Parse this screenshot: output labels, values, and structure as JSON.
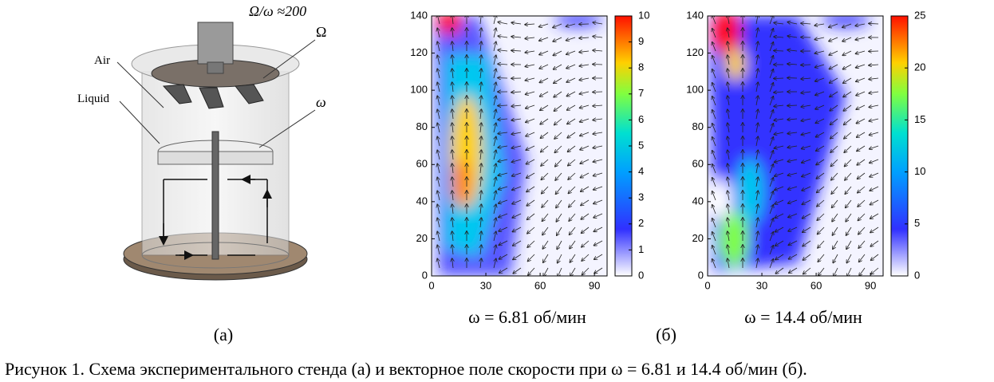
{
  "figure": {
    "diagram": {
      "ratio_label": "Ω/ω  ≈200",
      "omega_big": "Ω",
      "air": "Air",
      "liquid": "Liquid",
      "omega_small": "ω",
      "label": "(a)"
    },
    "panels": [
      {
        "xlim": [
          0,
          97
        ],
        "ylim": [
          0,
          140
        ],
        "xticks": [
          0,
          30,
          60,
          90
        ],
        "yticks": [
          0,
          20,
          40,
          60,
          80,
          100,
          120,
          140
        ],
        "colorbar": {
          "lim": [
            0,
            10
          ],
          "ticks": [
            0,
            1,
            2,
            3,
            4,
            5,
            6,
            7,
            8,
            9,
            10
          ]
        },
        "subtitle": "ω = 6.81 об/мин"
      },
      {
        "xlim": [
          0,
          97
        ],
        "ylim": [
          0,
          140
        ],
        "xticks": [
          0,
          30,
          60,
          90
        ],
        "yticks": [
          0,
          20,
          40,
          60,
          80,
          100,
          120,
          140
        ],
        "colorbar": {
          "lim": [
            0,
            25
          ],
          "ticks": [
            0,
            5,
            10,
            15,
            20,
            25
          ]
        },
        "subtitle": "ω = 14.4 об/мин"
      }
    ],
    "panels_label": "(б)",
    "caption": "Рисунок 1. Схема экспериментального стенда (а) и векторное поле скорости при ω = 6.81 и 14.4 об/мин (б)."
  }
}
